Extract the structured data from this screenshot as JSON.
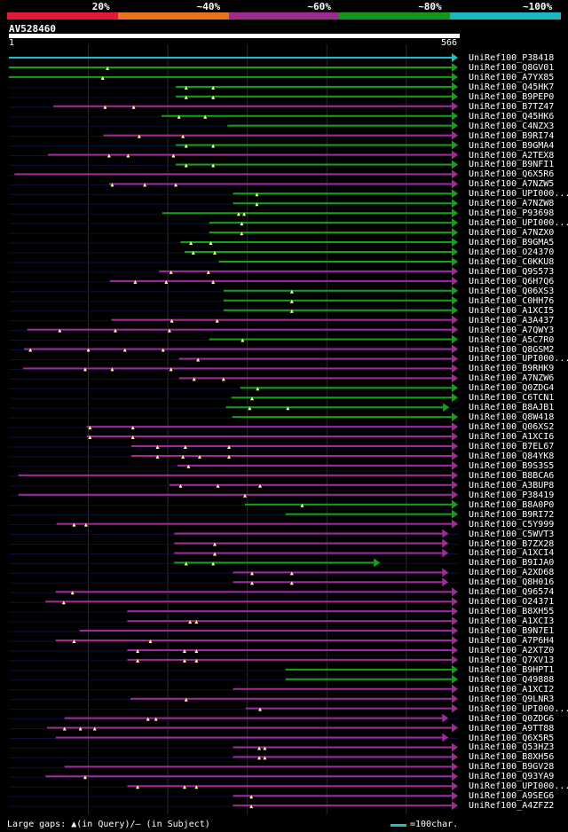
{
  "header": {
    "legend": [
      {
        "label": "20%",
        "color": "#e31a37"
      },
      {
        "label": "~40%",
        "color": "#e8731e"
      },
      {
        "label": "~60%",
        "color": "#9b2c8e"
      },
      {
        "label": "~80%",
        "color": "#149617"
      },
      {
        "label": "~100%",
        "color": "#1cb8c0"
      }
    ],
    "query_name": "AV528460",
    "query_start": "1",
    "query_end": "566"
  },
  "colors": {
    "c100": "#1fbdc6",
    "c80": "#14a114",
    "c60": "#a02a96",
    "dim": "#0b1038",
    "grid": "#2a2a2a",
    "marker": "#ffff99"
  },
  "query_length": 566,
  "hits": [
    {
      "name": "UniRef100_P38418",
      "start": 1,
      "end": 566,
      "c": "c100",
      "m": []
    },
    {
      "name": "UniRef100_Q8GV01",
      "start": 1,
      "end": 566,
      "c": "c80",
      "m": [
        125
      ]
    },
    {
      "name": "UniRef100_A7YX85",
      "start": 1,
      "end": 566,
      "c": "c80",
      "m": [
        119
      ]
    },
    {
      "name": "UniRef100_Q45HK7",
      "start": 211,
      "end": 566,
      "c": "c80",
      "m": [
        224,
        258
      ]
    },
    {
      "name": "UniRef100_B9PEP0",
      "start": 211,
      "end": 566,
      "c": "c80",
      "m": [
        224,
        258
      ]
    },
    {
      "name": "UniRef100_B7TZ47",
      "start": 57,
      "end": 566,
      "c": "c60",
      "m": [
        122,
        158
      ]
    },
    {
      "name": "UniRef100_Q45HK6",
      "start": 193,
      "end": 566,
      "c": "c80",
      "m": [
        215,
        248
      ]
    },
    {
      "name": "UniRef100_C4NZX3",
      "start": 276,
      "end": 566,
      "c": "c80",
      "m": []
    },
    {
      "name": "UniRef100_B9RI74",
      "start": 120,
      "end": 566,
      "c": "c60",
      "m": [
        165,
        220
      ]
    },
    {
      "name": "UniRef100_B9GMA4",
      "start": 211,
      "end": 566,
      "c": "c80",
      "m": [
        224,
        258
      ]
    },
    {
      "name": "UniRef100_A2TEX8",
      "start": 50,
      "end": 566,
      "c": "c60",
      "m": [
        127,
        151,
        208
      ]
    },
    {
      "name": "UniRef100_B9NFI1",
      "start": 211,
      "end": 566,
      "c": "c80",
      "m": [
        224,
        258
      ]
    },
    {
      "name": "UniRef100_Q6X5R6",
      "start": 8,
      "end": 566,
      "c": "c60",
      "m": []
    },
    {
      "name": "UniRef100_A7NZW5",
      "start": 127,
      "end": 566,
      "c": "c60",
      "m": [
        131,
        172,
        211
      ]
    },
    {
      "name": "UniRef100_UPI000_1",
      "start": 283,
      "end": 566,
      "c": "c80",
      "m": [
        313
      ]
    },
    {
      "name": "UniRef100_A7NZW8",
      "start": 283,
      "end": 566,
      "c": "c80",
      "m": [
        313
      ]
    },
    {
      "name": "UniRef100_P93698",
      "start": 194,
      "end": 566,
      "c": "c80",
      "m": [
        290,
        297
      ]
    },
    {
      "name": "UniRef100_UPI000_2",
      "start": 253,
      "end": 566,
      "c": "c80",
      "m": [
        294
      ]
    },
    {
      "name": "UniRef100_A7NZX0",
      "start": 253,
      "end": 566,
      "c": "c80",
      "m": [
        294
      ]
    },
    {
      "name": "UniRef100_B9GMA5",
      "start": 217,
      "end": 566,
      "c": "c80",
      "m": [
        230,
        255
      ]
    },
    {
      "name": "UniRef100_O24370",
      "start": 222,
      "end": 566,
      "c": "c80",
      "m": [
        233,
        260
      ]
    },
    {
      "name": "UniRef100_C0KKU8",
      "start": 265,
      "end": 566,
      "c": "c80",
      "m": []
    },
    {
      "name": "UniRef100_Q9S573",
      "start": 190,
      "end": 566,
      "c": "c60",
      "m": [
        205,
        252
      ]
    },
    {
      "name": "UniRef100_Q6H7Q6",
      "start": 128,
      "end": 566,
      "c": "c60",
      "m": [
        160,
        199,
        258
      ]
    },
    {
      "name": "UniRef100_Q06XS3",
      "start": 271,
      "end": 566,
      "c": "c80",
      "m": [
        357
      ]
    },
    {
      "name": "UniRef100_C0HH76",
      "start": 271,
      "end": 566,
      "c": "c80",
      "m": [
        357
      ]
    },
    {
      "name": "UniRef100_A1XCI5",
      "start": 271,
      "end": 566,
      "c": "c80",
      "m": [
        357
      ]
    },
    {
      "name": "UniRef100_A3A437",
      "start": 130,
      "end": 566,
      "c": "c60",
      "m": [
        206,
        263
      ]
    },
    {
      "name": "UniRef100_A7QWY3",
      "start": 24,
      "end": 566,
      "c": "c60",
      "m": [
        65,
        135,
        203
      ]
    },
    {
      "name": "UniRef100_A5C7R0",
      "start": 253,
      "end": 566,
      "c": "c80",
      "m": [
        295
      ]
    },
    {
      "name": "UniRef100_Q8GSM2",
      "start": 20,
      "end": 566,
      "c": "c60",
      "m": [
        28,
        101,
        147,
        195
      ]
    },
    {
      "name": "UniRef100_UPI000_3",
      "start": 215,
      "end": 566,
      "c": "c60",
      "m": [
        239
      ]
    },
    {
      "name": "UniRef100_B9RHK9",
      "start": 19,
      "end": 566,
      "c": "c60",
      "m": [
        97,
        131,
        205
      ]
    },
    {
      "name": "UniRef100_A7NZW6",
      "start": 215,
      "end": 566,
      "c": "c60",
      "m": [
        234,
        271
      ]
    },
    {
      "name": "UniRef100_Q0ZDG4",
      "start": 292,
      "end": 566,
      "c": "c80",
      "m": [
        314
      ]
    },
    {
      "name": "UniRef100_C6TCN1",
      "start": 281,
      "end": 566,
      "c": "c80",
      "m": [
        307
      ]
    },
    {
      "name": "UniRef100_B8AJB1",
      "start": 274,
      "end": 555,
      "c": "c80",
      "m": [
        304,
        352
      ]
    },
    {
      "name": "UniRef100_Q8W418",
      "start": 282,
      "end": 566,
      "c": "c80",
      "m": []
    },
    {
      "name": "UniRef100_Q06XS2",
      "start": 99,
      "end": 566,
      "c": "c60",
      "m": [
        103,
        157
      ]
    },
    {
      "name": "UniRef100_A1XCI6",
      "start": 99,
      "end": 566,
      "c": "c60",
      "m": [
        103,
        157
      ]
    },
    {
      "name": "UniRef100_B7EL67",
      "start": 155,
      "end": 566,
      "c": "c60",
      "m": [
        188,
        223,
        278
      ]
    },
    {
      "name": "UniRef100_Q84YK8",
      "start": 155,
      "end": 566,
      "c": "c60",
      "m": [
        188,
        220,
        241,
        278
      ]
    },
    {
      "name": "UniRef100_B9S3S5",
      "start": 213,
      "end": 566,
      "c": "c60",
      "m": [
        227
      ]
    },
    {
      "name": "UniRef100_B8BCA6",
      "start": 13,
      "end": 566,
      "c": "c60",
      "m": []
    },
    {
      "name": "UniRef100_A3BUP8",
      "start": 203,
      "end": 566,
      "c": "c60",
      "m": [
        217,
        264,
        317
      ]
    },
    {
      "name": "UniRef100_P38419",
      "start": 13,
      "end": 566,
      "c": "c60",
      "m": [
        298
      ]
    },
    {
      "name": "UniRef100_B8A0P0",
      "start": 298,
      "end": 566,
      "c": "c80",
      "m": [
        370
      ]
    },
    {
      "name": "UniRef100_B9RI72",
      "start": 349,
      "end": 566,
      "c": "c80",
      "m": []
    },
    {
      "name": "UniRef100_C5Y999",
      "start": 61,
      "end": 566,
      "c": "c60",
      "m": [
        83,
        98
      ]
    },
    {
      "name": "UniRef100_C5WVT3",
      "start": 209,
      "end": 554,
      "c": "c60",
      "m": []
    },
    {
      "name": "UniRef100_B7ZX28",
      "start": 209,
      "end": 554,
      "c": "c60",
      "m": [
        260
      ]
    },
    {
      "name": "UniRef100_A1XCI4",
      "start": 209,
      "end": 554,
      "c": "c60",
      "m": [
        260
      ]
    },
    {
      "name": "UniRef100_B9IJA0",
      "start": 209,
      "end": 468,
      "c": "c80",
      "m": [
        224,
        258
      ]
    },
    {
      "name": "UniRef100_A2XD68",
      "start": 283,
      "end": 554,
      "c": "c60",
      "m": [
        307,
        357
      ]
    },
    {
      "name": "UniRef100_Q8H016",
      "start": 283,
      "end": 554,
      "c": "c60",
      "m": [
        307,
        357
      ]
    },
    {
      "name": "UniRef100_Q96574",
      "start": 60,
      "end": 566,
      "c": "c60",
      "m": [
        81
      ]
    },
    {
      "name": "UniRef100_O24371",
      "start": 47,
      "end": 566,
      "c": "c60",
      "m": [
        70
      ]
    },
    {
      "name": "UniRef100_B8XH55",
      "start": 150,
      "end": 566,
      "c": "c60",
      "m": []
    },
    {
      "name": "UniRef100_A1XCI3",
      "start": 150,
      "end": 566,
      "c": "c60",
      "m": [
        229,
        237
      ]
    },
    {
      "name": "UniRef100_B9N7E1",
      "start": 90,
      "end": 566,
      "c": "c60",
      "m": []
    },
    {
      "name": "UniRef100_A7P6H4",
      "start": 60,
      "end": 566,
      "c": "c60",
      "m": [
        83,
        179
      ]
    },
    {
      "name": "UniRef100_A2XTZ0",
      "start": 150,
      "end": 566,
      "c": "c60",
      "m": [
        163,
        222,
        237
      ]
    },
    {
      "name": "UniRef100_Q7XV13",
      "start": 150,
      "end": 566,
      "c": "c60",
      "m": [
        163,
        222,
        237
      ]
    },
    {
      "name": "UniRef100_B9HPT1",
      "start": 349,
      "end": 566,
      "c": "c80",
      "m": []
    },
    {
      "name": "UniRef100_Q49888",
      "start": 349,
      "end": 566,
      "c": "c80",
      "m": []
    },
    {
      "name": "UniRef100_A1XCI2",
      "start": 283,
      "end": 566,
      "c": "c60",
      "m": []
    },
    {
      "name": "UniRef100_Q9LNR3",
      "start": 154,
      "end": 566,
      "c": "c60",
      "m": [
        224
      ]
    },
    {
      "name": "UniRef100_UPI000_4",
      "start": 299,
      "end": 566,
      "c": "c60",
      "m": [
        317
      ]
    },
    {
      "name": "UniRef100_Q0ZDG6",
      "start": 71,
      "end": 554,
      "c": "c60",
      "m": [
        176,
        186
      ]
    },
    {
      "name": "UniRef100_A9TT88",
      "start": 49,
      "end": 566,
      "c": "c60",
      "m": [
        71,
        91,
        109
      ]
    },
    {
      "name": "UniRef100_Q6X5R5",
      "start": 60,
      "end": 554,
      "c": "c60",
      "m": []
    },
    {
      "name": "UniRef100_Q53HZ3",
      "start": 283,
      "end": 566,
      "c": "c60",
      "m": [
        316,
        323
      ]
    },
    {
      "name": "UniRef100_B8XH56",
      "start": 283,
      "end": 566,
      "c": "c60",
      "m": [
        316,
        323
      ]
    },
    {
      "name": "UniRef100_B9GV28",
      "start": 71,
      "end": 566,
      "c": "c60",
      "m": []
    },
    {
      "name": "UniRef100_Q93YA9",
      "start": 47,
      "end": 566,
      "c": "c60",
      "m": [
        97
      ]
    },
    {
      "name": "UniRef100_UPI000_5",
      "start": 150,
      "end": 566,
      "c": "c60",
      "m": [
        163,
        222,
        237
      ]
    },
    {
      "name": "UniRef100_A9SEG6",
      "start": 283,
      "end": 566,
      "c": "c60",
      "m": [
        306
      ]
    },
    {
      "name": "UniRef100_A4ZFZ2",
      "start": 283,
      "end": 566,
      "c": "c60",
      "m": [
        306
      ]
    }
  ],
  "hit_labels": [
    "UniRef100_P38418",
    "UniRef100_Q8GV01",
    "UniRef100_A7YX85",
    "UniRef100_Q45HK7",
    "UniRef100_B9PEP0",
    "UniRef100_B7TZ47",
    "UniRef100_Q45HK6",
    "UniRef100_C4NZX3",
    "UniRef100_B9RI74",
    "UniRef100_B9GMA4",
    "UniRef100_A2TEX8",
    "UniRef100_B9NFI1",
    "UniRef100_Q6X5R6",
    "UniRef100_A7NZW5",
    "UniRef100_UPI000...",
    "UniRef100_A7NZW8",
    "UniRef100_P93698",
    "UniRef100_UPI000...",
    "UniRef100_A7NZX0",
    "UniRef100_B9GMA5",
    "UniRef100_O24370",
    "UniRef100_C0KKU8",
    "UniRef100_Q9S573",
    "UniRef100_Q6H7Q6",
    "UniRef100_Q06XS3",
    "UniRef100_C0HH76",
    "UniRef100_A1XCI5",
    "UniRef100_A3A437",
    "UniRef100_A7QWY3",
    "UniRef100_A5C7R0",
    "UniRef100_Q8GSM2",
    "UniRef100_UPI000...",
    "UniRef100_B9RHK9",
    "UniRef100_A7NZW6",
    "UniRef100_Q0ZDG4",
    "UniRef100_C6TCN1",
    "UniRef100_B8AJB1",
    "UniRef100_Q8W418",
    "UniRef100_Q06XS2",
    "UniRef100_A1XCI6",
    "UniRef100_B7EL67",
    "UniRef100_Q84YK8",
    "UniRef100_B9S3S5",
    "UniRef100_B8BCA6",
    "UniRef100_A3BUP8",
    "UniRef100_P38419",
    "UniRef100_B8A0P0",
    "UniRef100_B9RI72",
    "UniRef100_C5Y999",
    "UniRef100_C5WVT3",
    "UniRef100_B7ZX28",
    "UniRef100_A1XCI4",
    "UniRef100_B9IJA0",
    "UniRef100_A2XD68",
    "UniRef100_Q8H016",
    "UniRef100_Q96574",
    "UniRef100_O24371",
    "UniRef100_B8XH55",
    "UniRef100_A1XCI3",
    "UniRef100_B9N7E1",
    "UniRef100_A7P6H4",
    "UniRef100_A2XTZ0",
    "UniRef100_Q7XV13",
    "UniRef100_B9HPT1",
    "UniRef100_Q49888",
    "UniRef100_A1XCI2",
    "UniRef100_Q9LNR3",
    "UniRef100_UPI000...",
    "UniRef100_Q0ZDG6",
    "UniRef100_A9TT88",
    "UniRef100_Q6X5R5",
    "UniRef100_Q53HZ3",
    "UniRef100_B8XH56",
    "UniRef100_B9GV28",
    "UniRef100_Q93YA9",
    "UniRef100_UPI000...",
    "UniRef100_A9SEG6",
    "UniRef100_A4ZFZ2"
  ],
  "footer": {
    "gaps_text": "Large gaps: ▲(in Query)/– (in Subject)",
    "scale_text": "=100char."
  }
}
